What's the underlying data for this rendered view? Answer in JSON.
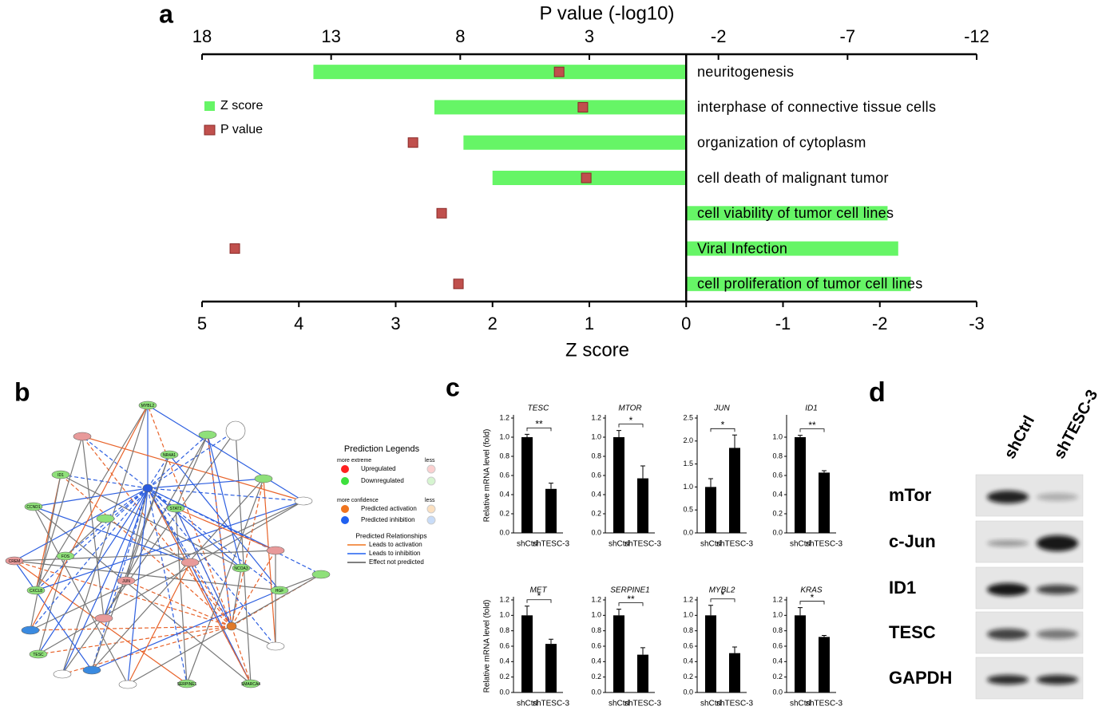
{
  "panel_labels": [
    "a",
    "b",
    "c",
    "d"
  ],
  "chart_data": [
    {
      "type": "hbar-dual",
      "xlabel": "Z score",
      "x2label": "P value (-log10)",
      "categories": [
        "neuritogenesis",
        "interphase of connective tissue cells",
        "organization of cytoplasm",
        "cell death of malignant tumor",
        "cell viability of tumor cell lines",
        "Viral Infection",
        "cell proliferation of tumor cell lines"
      ],
      "series": [
        {
          "name": "Z score",
          "color": "#66f566",
          "values": [
            3.85,
            2.6,
            2.3,
            2.0,
            -2.08,
            -2.19,
            -2.32
          ]
        },
        {
          "name": "P value",
          "color": "#c0504d",
          "axis": "x2",
          "values": [
            4.17,
            3.25,
            9.83,
            3.12,
            8.72,
            16.73,
            8.07
          ]
        }
      ],
      "xlim": [
        5,
        -3
      ],
      "xticks": [
        5,
        4,
        3,
        2,
        1,
        0,
        -1,
        -2,
        -3
      ],
      "x2lim": [
        18,
        -12
      ],
      "x2ticks": [
        18,
        13,
        8,
        3,
        -2,
        -7,
        -12
      ],
      "legend": "upper left"
    },
    {
      "type": "bar",
      "title": "TESC",
      "ylabel": "Relative mRNA level (fold)",
      "categories": [
        "shCtrl",
        "shTESC-3"
      ],
      "values": [
        1.0,
        0.46
      ],
      "errors": [
        0.03,
        0.06
      ],
      "annotation": "**",
      "color": "#000000",
      "ylim": [
        0,
        1.2
      ],
      "yticks": [
        {
          "value": 0,
          "label": "0.0"
        },
        0.2,
        0.4,
        0.6,
        0.8,
        {
          "value": 1,
          "label": "1.0"
        },
        1.2
      ]
    },
    {
      "type": "bar",
      "title": "MTOR",
      "categories": [
        "shCtrl",
        "shTESC-3"
      ],
      "values": [
        1.0,
        0.57
      ],
      "errors": [
        0.07,
        0.13
      ],
      "annotation": "*",
      "color": "#000000",
      "ylim": [
        0,
        1.2
      ],
      "yticks": [
        {
          "value": 0,
          "label": "0.0"
        },
        0.2,
        0.4,
        0.6,
        0.8,
        {
          "value": 1,
          "label": "1.0"
        },
        1.2
      ]
    },
    {
      "type": "bar",
      "title": "JUN",
      "categories": [
        "shCtrl",
        "shTESC-3"
      ],
      "values": [
        1.0,
        1.85
      ],
      "errors": [
        0.18,
        0.28
      ],
      "annotation": "*",
      "color": "#000000",
      "ylim": [
        0,
        2.5
      ],
      "yticks": [
        {
          "value": 0,
          "label": "0.0"
        },
        0.5,
        {
          "value": 1,
          "label": "1.0"
        },
        1.5,
        {
          "value": 2,
          "label": "2.0"
        },
        2.5
      ]
    },
    {
      "type": "bar",
      "title": "ID1",
      "categories": [
        "shCtrl",
        "shTESC-3"
      ],
      "values": [
        1.0,
        0.63
      ],
      "errors": [
        0.02,
        0.02
      ],
      "annotation": "**",
      "color": "#000000",
      "ylim": [
        0,
        1.2
      ],
      "yticks": [
        {
          "value": 0,
          "label": "0.0"
        },
        0.2,
        0.4,
        0.6,
        0.8,
        {
          "value": 1,
          "label": "1.0"
        }
      ]
    },
    {
      "type": "bar",
      "title": "MET",
      "ylabel": "Relative mRNA level (fold)",
      "categories": [
        "shCtrl",
        "shTESC-3"
      ],
      "values": [
        1.0,
        0.63
      ],
      "errors": [
        0.12,
        0.06
      ],
      "annotation": "*",
      "color": "#000000",
      "ylim": [
        0,
        1.2
      ],
      "yticks": [
        {
          "value": 0,
          "label": "0.0"
        },
        0.2,
        0.4,
        0.6,
        0.8,
        {
          "value": 1,
          "label": "1.0"
        },
        1.2
      ]
    },
    {
      "type": "bar",
      "title": "SERPINE1",
      "categories": [
        "shCtrl",
        "shTESC-3"
      ],
      "values": [
        1.0,
        0.49
      ],
      "errors": [
        0.08,
        0.09
      ],
      "annotation": "**",
      "color": "#000000",
      "ylim": [
        0,
        1.2
      ],
      "yticks": [
        {
          "value": 0,
          "label": "0.0"
        },
        0.2,
        0.4,
        0.6,
        0.8,
        {
          "value": 1,
          "label": "1.0"
        },
        1.2
      ]
    },
    {
      "type": "bar",
      "title": "MYBL2",
      "categories": [
        "shCtrl",
        "shTESC-3"
      ],
      "values": [
        1.0,
        0.51
      ],
      "errors": [
        0.13,
        0.08
      ],
      "annotation": "*",
      "color": "#000000",
      "ylim": [
        0,
        1.2
      ],
      "yticks": [
        {
          "value": 0,
          "label": "0.0"
        },
        0.2,
        0.4,
        0.6,
        0.8,
        {
          "value": 1,
          "label": "1.0"
        },
        1.2
      ]
    },
    {
      "type": "bar",
      "title": "KRAS",
      "categories": [
        "shCtrl",
        "shTESC-3"
      ],
      "values": [
        1.0,
        0.72
      ],
      "errors": [
        0.1,
        0.02
      ],
      "annotation": "*",
      "color": "#000000",
      "ylim": [
        0,
        1.2
      ],
      "yticks": [
        {
          "value": 0,
          "label": "0.0"
        },
        0.2,
        0.4,
        0.6,
        0.8,
        {
          "value": 1,
          "label": "1.0"
        },
        1.2
      ]
    }
  ],
  "network": {
    "nodes": [
      {
        "label": "MYBL2",
        "color": "#8fe07a"
      },
      {
        "label": "NR4A1",
        "color": "#8fe07a"
      },
      {
        "label": "ID1",
        "color": "#8fe07a"
      },
      {
        "label": "CCND1",
        "color": "#8fe07a"
      },
      {
        "label": "STAT3",
        "color": "#8fe07a"
      },
      {
        "label": "FOS",
        "color": "#8fe07a"
      },
      {
        "label": "CREM",
        "color": "#e89a9a"
      },
      {
        "label": "CXCL8",
        "color": "#8fe07a"
      },
      {
        "label": "JUN",
        "color": "#e89a9a"
      },
      {
        "label": "NCOA3",
        "color": "#8fe07a"
      },
      {
        "label": "SMARCA4",
        "color": "#8fe07a"
      },
      {
        "label": "SERPINE1",
        "color": "#8fe07a"
      },
      {
        "label": "TESC",
        "color": "#8fe07a"
      },
      {
        "label": "HGF",
        "color": "#8fe07a"
      }
    ],
    "legend": {
      "title": "Prediction Legends",
      "extreme": "more extreme",
      "less": "less",
      "up": "Upregulated",
      "down": "Downregulated",
      "confidence": "more confidence",
      "activation": "Predicted activation",
      "inhibition": "Predicted inhibition",
      "relationships": "Predicted Relationships",
      "leads_activation": "Leads to activation",
      "leads_inhibition": "Leads to inhibition",
      "not_predicted": "Effect not predicted"
    }
  },
  "blot": {
    "lanes": [
      "shCtrl",
      "shTESC-3"
    ],
    "rows": [
      "mTor",
      "c-Jun",
      "ID1",
      "TESC",
      "GAPDH"
    ]
  }
}
